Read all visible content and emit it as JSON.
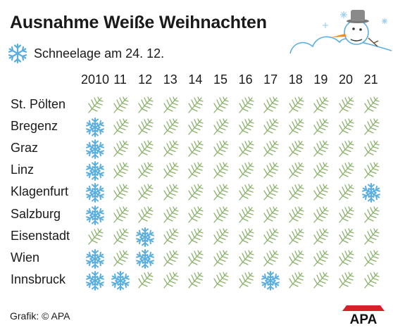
{
  "title": "Ausnahme Weiße Weihnachten",
  "legend": {
    "label": "Schneelage am 24. 12.",
    "icon": "snowflake-icon"
  },
  "source": "Grafik: © APA",
  "logo": "APA",
  "colors": {
    "snow": "#5aaee0",
    "fir": "#8ab26a",
    "text": "#1a1a1a"
  },
  "chart_data": {
    "type": "table",
    "years": [
      "2010",
      "11",
      "12",
      "13",
      "14",
      "15",
      "16",
      "17",
      "18",
      "19",
      "20",
      "21"
    ],
    "cities": [
      "St. Pölten",
      "Bregenz",
      "Graz",
      "Linz",
      "Klagenfurt",
      "Salzburg",
      "Eisenstadt",
      "Wien",
      "Innsbruck"
    ],
    "legend": "Schneelage am 24. 12.",
    "snow": [
      [
        0,
        0,
        0,
        0,
        0,
        0,
        0,
        0,
        0,
        0,
        0,
        0
      ],
      [
        1,
        0,
        0,
        0,
        0,
        0,
        0,
        0,
        0,
        0,
        0,
        0
      ],
      [
        1,
        0,
        0,
        0,
        0,
        0,
        0,
        0,
        0,
        0,
        0,
        0
      ],
      [
        1,
        0,
        0,
        0,
        0,
        0,
        0,
        0,
        0,
        0,
        0,
        0
      ],
      [
        1,
        0,
        0,
        0,
        0,
        0,
        0,
        0,
        0,
        0,
        0,
        1
      ],
      [
        1,
        0,
        0,
        0,
        0,
        0,
        0,
        0,
        0,
        0,
        0,
        0
      ],
      [
        0,
        0,
        1,
        0,
        0,
        0,
        0,
        0,
        0,
        0,
        0,
        0
      ],
      [
        1,
        0,
        1,
        0,
        0,
        0,
        0,
        0,
        0,
        0,
        0,
        0
      ],
      [
        1,
        1,
        0,
        0,
        0,
        0,
        0,
        1,
        0,
        0,
        0,
        0
      ]
    ]
  }
}
